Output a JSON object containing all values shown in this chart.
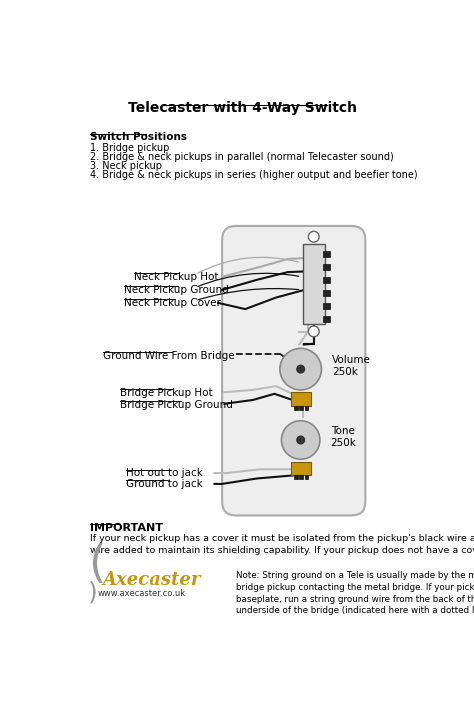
{
  "title": "Telecaster with 4-Way Switch",
  "bg_color": "#ffffff",
  "switch_positions_label": "Switch Positions",
  "switch_positions": [
    "1. Bridge pickup",
    "2. Bridge & neck pickups in parallel (normal Telecaster sound)",
    "3. Neck pickup",
    "4. Bridge & neck pickups in series (higher output and beefier tone)"
  ],
  "volume_label": "Volume\n250k",
  "tone_label": "Tone\n250k",
  "important_title": "IMPORTANT",
  "important_text": "If your neck pickup has a cover it must be isolated from the pickup's black wire and a separate ground\nwire added to maintain its shielding capability. If your pickup does not have a cover it will not be an issue.",
  "note_text": "Note: String ground on a Tele is usually made by the metal baseplate of the\nbridge pickup contacting the metal bridge. If your pickup doesn't have a metal\nbaseplate, run a string ground wire from the back of the volume pot to the\nunderside of the bridge (indicated here with a dotted line).",
  "axecaster_text": "Axecaster",
  "axecaster_url": "www.axecaster.co.uk",
  "gray_color": "#888888",
  "yellow_color": "#c8960c",
  "light_gray": "#cccccc",
  "dark_color": "#222222",
  "wire_gray": "#aaaaaa",
  "wire_black": "#111111",
  "wire_white": "#bbbbbb"
}
